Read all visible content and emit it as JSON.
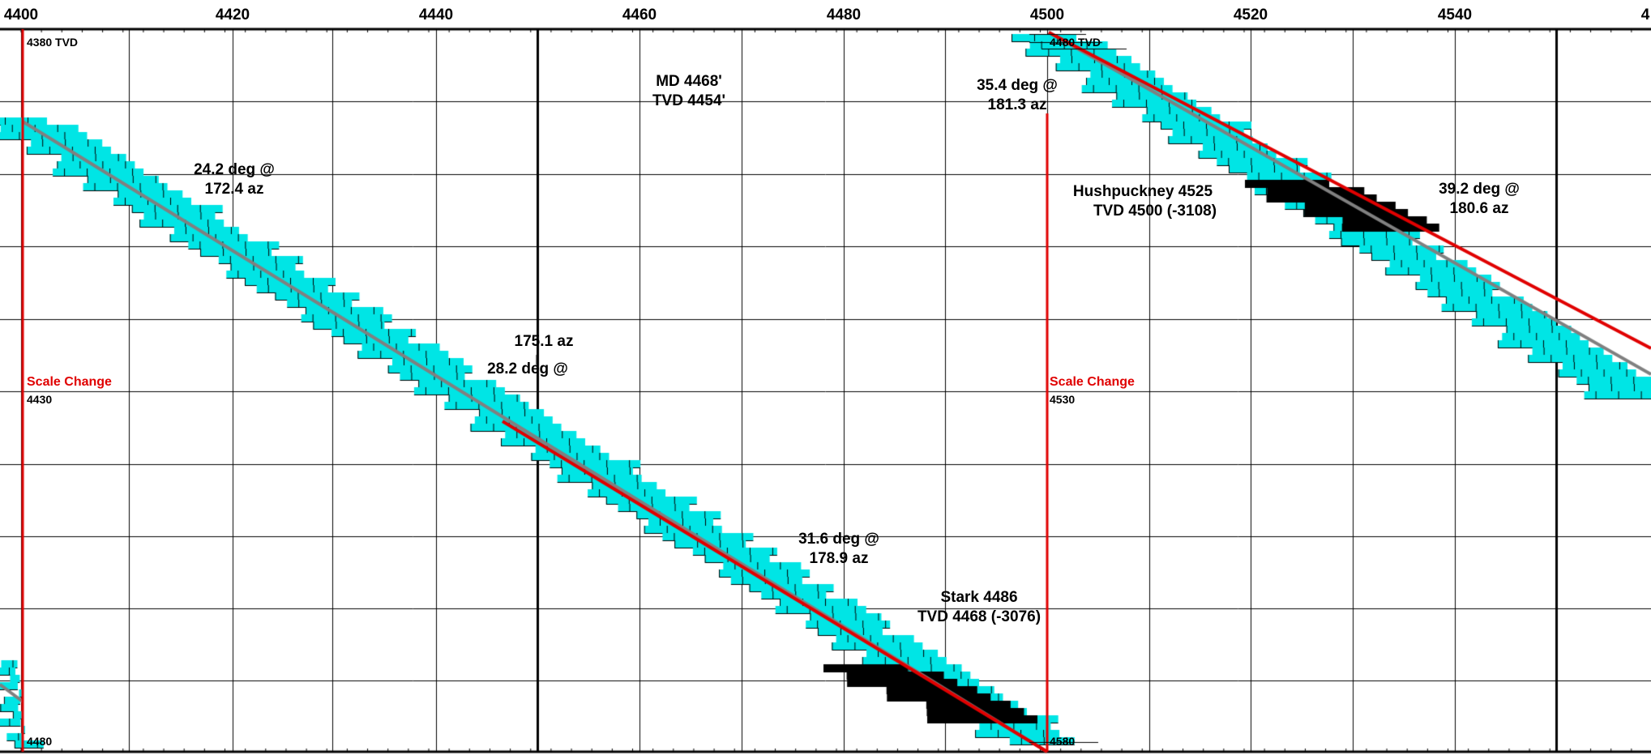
{
  "md_axis": {
    "ticks": [
      "4400",
      "4420",
      "4440",
      "4460",
      "4480",
      "4500",
      "4520",
      "4540",
      "4"
    ]
  },
  "colors": {
    "lithology": "#00e5e5",
    "coal": "#000000",
    "wellpath": "#e00000",
    "trend": "#808080",
    "grid": "#000000"
  },
  "lithology_icon": "brick-limestone-pattern",
  "scale_changes": [
    {
      "label": "Scale Change",
      "tvd_top": "4380 TVD",
      "tvd_mid": "4430",
      "tvd_bottom": "4480"
    },
    {
      "label": "Scale Change",
      "tvd_top": "4480 TVD",
      "tvd_mid": "4530",
      "tvd_bottom": "4580"
    }
  ],
  "annotations": {
    "survey_1": {
      "line1": "24.2 deg @",
      "line2": "172.4 az"
    },
    "survey_2": {
      "line1": "175.1 az",
      "line2": "28.2 deg @"
    },
    "survey_3": {
      "line1": "31.6 deg @",
      "line2": "178.9 az"
    },
    "survey_4": {
      "line1": "35.4 deg @",
      "line2": "181.3 az"
    },
    "survey_5": {
      "line1": "39.2 deg @",
      "line2": "180.6 az"
    },
    "md_marker": {
      "line1": "MD 4468'",
      "line2": "TVD 4454'"
    },
    "top_stark": {
      "line1": "Stark 4486",
      "line2": "TVD 4468 (-3076)"
    },
    "top_hushpuckney": {
      "line1": "Hushpuckney  4525",
      "line2": "TVD 4500 (-3108)"
    }
  }
}
